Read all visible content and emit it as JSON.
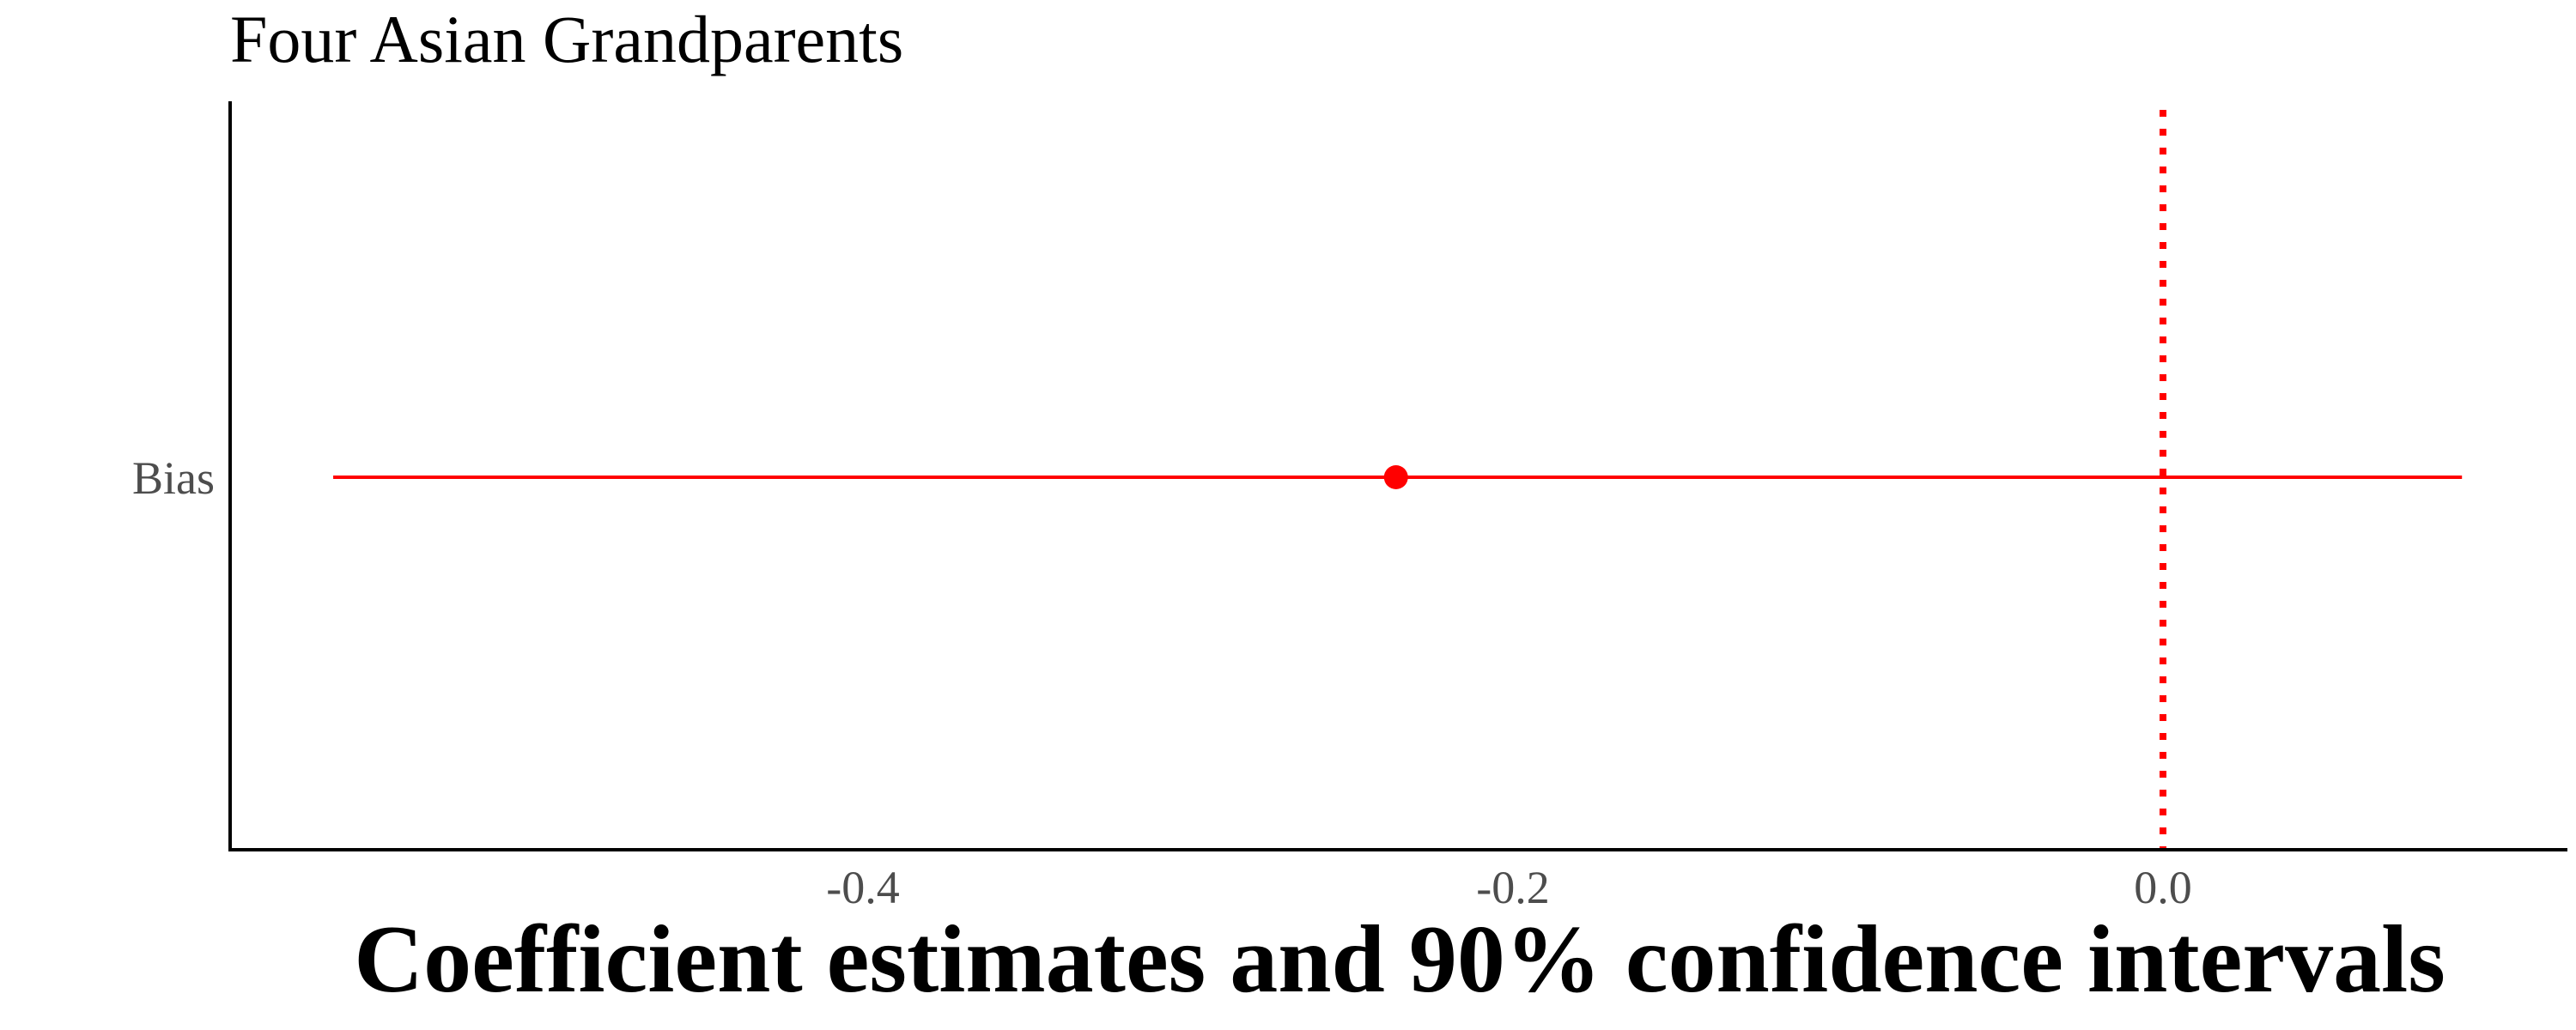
{
  "chart_data": {
    "type": "scatter",
    "title": "Four Asian Grandparents",
    "xlabel": "Coefficient estimates and 90% confidence intervals",
    "ylabel": "",
    "categories": [
      "Bias"
    ],
    "series": [
      {
        "values": [
          {
            "term": "Bias",
            "estimate": -0.236,
            "conf_low": -0.563,
            "conf_high": 0.092
          }
        ]
      }
    ],
    "xlim": [
      -0.6,
      0.125
    ],
    "xticks": [
      -0.4,
      -0.2,
      0.0
    ],
    "xtick_labels": [
      "-0.4",
      "-0.2",
      "0.0"
    ],
    "reference_line": {
      "x": 0.0,
      "style": "dotted"
    },
    "grid": false,
    "colors": {
      "point": "#ff0000",
      "interval": "#ff0000",
      "reference_line": "#ff0000",
      "axis": "#000000",
      "tick_text": "#4d4d4d"
    }
  }
}
